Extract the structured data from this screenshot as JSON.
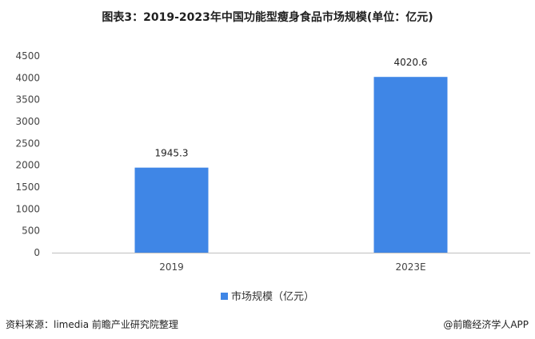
{
  "chart_data": {
    "type": "bar",
    "title": "图表3：2019-2023年中国功能型瘦身食品市场规模(单位：亿元)",
    "categories": [
      "2019",
      "2023E"
    ],
    "series": [
      {
        "name": "市场规模（亿元）",
        "values": [
          1945.3,
          4020.6
        ],
        "color": "#3F86E6"
      }
    ],
    "ylim": [
      0,
      4500
    ],
    "yticks": [
      0,
      500,
      1000,
      1500,
      2000,
      2500,
      3000,
      3500,
      4000,
      4500
    ],
    "grid": false,
    "legend_position": "bottom"
  },
  "footer": {
    "source": "资料来源：limedia 前瞻产业研究院整理",
    "credit": "@前瞻经济学人APP"
  }
}
